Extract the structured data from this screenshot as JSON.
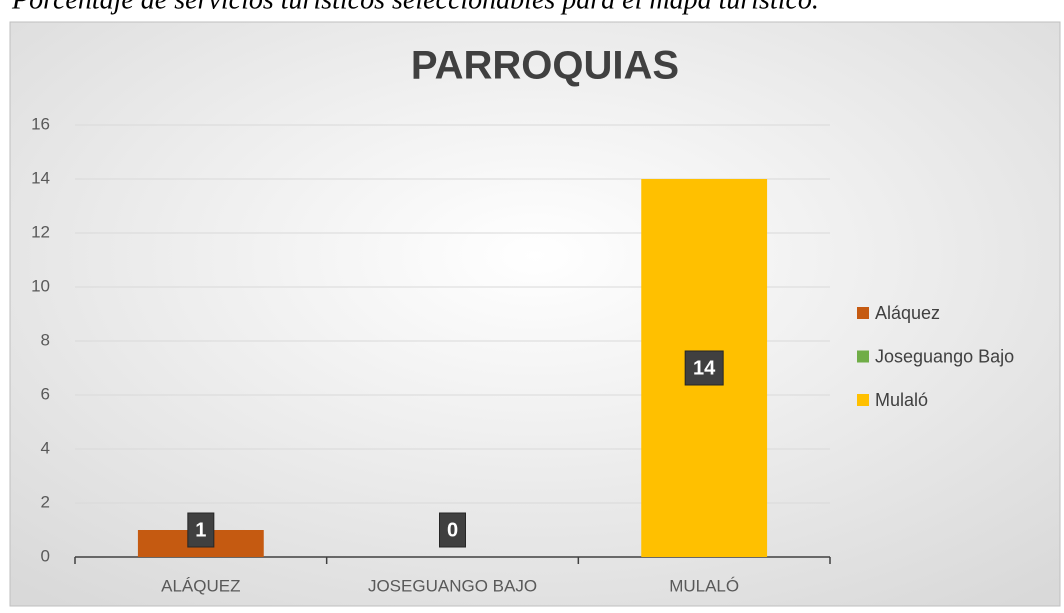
{
  "chart_data": {
    "type": "bar",
    "caption": "Porcentaje de servicios turísticos seleccionables para el mapa turístico.",
    "title": "PARROQUIAS",
    "categories": [
      "ALÁQUEZ",
      "JOSEGUANGO BAJO",
      "MULALÓ"
    ],
    "values": [
      1,
      0,
      14
    ],
    "colors": [
      "#c55a11",
      "#70ad47",
      "#ffc000"
    ],
    "legend": [
      "Aláquez",
      "Joseguango Bajo",
      "Mulaló"
    ],
    "legend_position": "right",
    "ylim": [
      0,
      16
    ],
    "yticks": [
      0,
      2,
      4,
      6,
      8,
      10,
      12,
      14,
      16
    ],
    "grid": true
  }
}
